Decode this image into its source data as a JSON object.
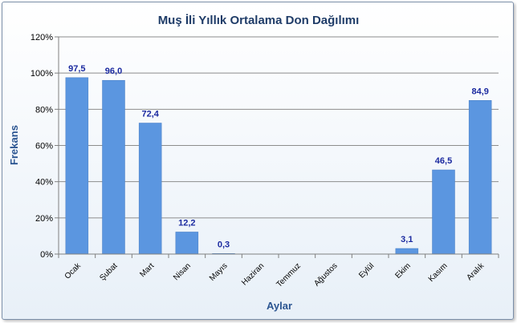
{
  "chart_data": {
    "type": "bar",
    "title": "Muş İli Yıllık Ortalama Don Dağılımı",
    "xlabel": "Aylar",
    "ylabel": "Frekans",
    "categories": [
      "Ocak",
      "Şubat",
      "Mart",
      "Nisan",
      "Mayıs",
      "Haziran",
      "Temmuz",
      "Ağustos",
      "Eylül",
      "Ekim",
      "Kasım",
      "Aralık"
    ],
    "values": [
      97.5,
      96.0,
      72.4,
      12.2,
      0.3,
      null,
      null,
      null,
      null,
      3.1,
      46.5,
      84.9
    ],
    "data_labels": [
      "97,5",
      "96,0",
      "72,4",
      "12,2",
      "0,3",
      "",
      "",
      "",
      "",
      "3,1",
      "46,5",
      "84,9"
    ],
    "ylim": [
      0,
      120
    ],
    "yticks": [
      "0%",
      "20%",
      "40%",
      "60%",
      "80%",
      "100%",
      "120%"
    ],
    "grid": true,
    "legend": "none",
    "bar_color": "#5b96e0"
  }
}
